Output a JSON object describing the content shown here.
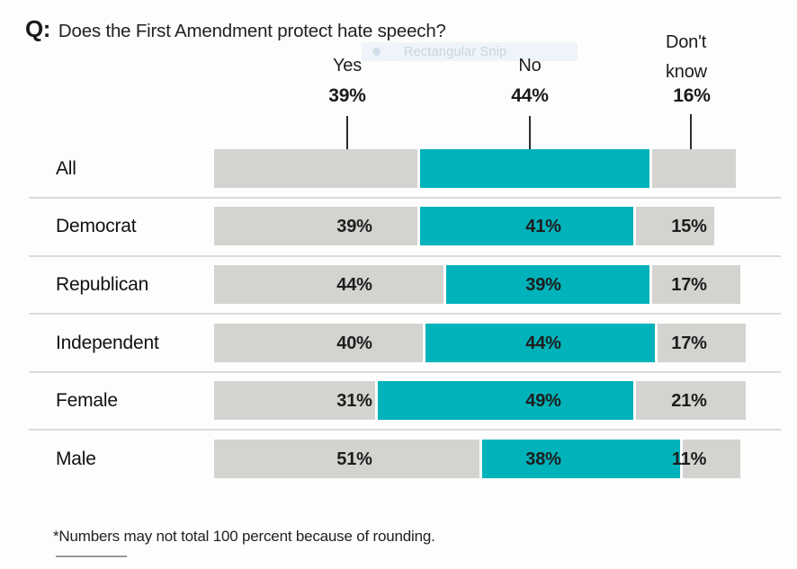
{
  "title": {
    "prefix": "Q:",
    "text": "Does the First Amendment protect hate speech?"
  },
  "snip_overlay": {
    "label": "Rectangular Snip"
  },
  "header": {
    "yes_label": "Yes",
    "yes_value": "39%",
    "no_label": "No",
    "no_value": "44%",
    "dont_know_line1": "Don't",
    "dont_know_line2": "know",
    "dont_know_value": "16%"
  },
  "chart_data": {
    "type": "bar",
    "orientation": "horizontal",
    "stacked": true,
    "title": "Q: Does the First Amendment protect hate speech?",
    "categories": [
      "All",
      "Democrat",
      "Republican",
      "Independent",
      "Female",
      "Male"
    ],
    "series": [
      {
        "name": "Yes",
        "values": [
          39,
          39,
          44,
          40,
          31,
          51
        ]
      },
      {
        "name": "No",
        "values": [
          44,
          41,
          39,
          44,
          49,
          38
        ]
      },
      {
        "name": "Don't know",
        "values": [
          16,
          15,
          17,
          17,
          21,
          11
        ]
      }
    ],
    "value_suffix": "%",
    "legend_position": "top",
    "grid": false,
    "footnote": "*Numbers may not total 100 percent because of rounding."
  },
  "footnote": "*Numbers may not total 100 percent because of rounding.",
  "colors": {
    "no_fill": "#00b2b9",
    "yes_fill": "#d4d3d0",
    "dont_know_fill": "#d4d3d0",
    "text": "#1a1a1a",
    "separator": "#dcdbd9",
    "callout": "#2d2d2d"
  }
}
